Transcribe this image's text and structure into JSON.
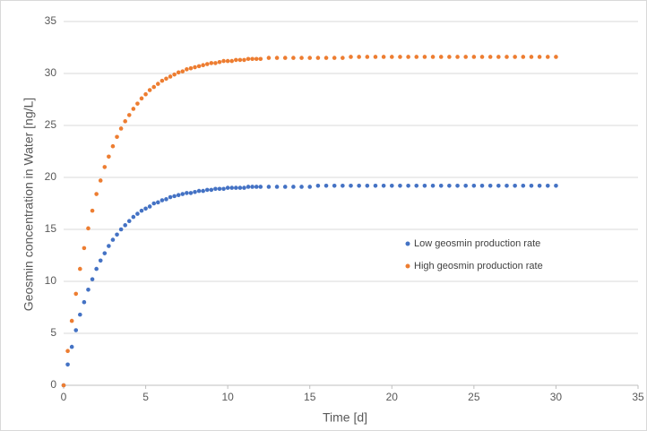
{
  "chart_data": {
    "type": "scatter",
    "x_label": "Time [d]",
    "y_label": "Geosmin concentration in Water [ng/L]",
    "xlim": [
      0,
      35
    ],
    "xticks": [
      0,
      5,
      10,
      15,
      20,
      25,
      30,
      35
    ],
    "ylim": [
      0,
      35
    ],
    "yticks": [
      0,
      5,
      10,
      15,
      20,
      25,
      30,
      35
    ],
    "grid": true,
    "legend_position": "right",
    "x": [
      0,
      0.25,
      0.5,
      0.75,
      1,
      1.25,
      1.5,
      1.75,
      2,
      2.25,
      2.5,
      2.75,
      3,
      3.25,
      3.5,
      3.75,
      4,
      4.25,
      4.5,
      4.75,
      5,
      5.25,
      5.5,
      5.75,
      6,
      6.25,
      6.5,
      6.75,
      7,
      7.25,
      7.5,
      7.75,
      8,
      8.25,
      8.5,
      8.75,
      9,
      9.25,
      9.5,
      9.75,
      10,
      10.25,
      10.5,
      10.75,
      11,
      11.25,
      11.5,
      11.75,
      12,
      12.5,
      13,
      13.5,
      14,
      14.5,
      15,
      15.5,
      16,
      16.5,
      17,
      17.5,
      18,
      18.5,
      19,
      19.5,
      20,
      20.5,
      21,
      21.5,
      22,
      22.5,
      23,
      23.5,
      24,
      24.5,
      25,
      25.5,
      26,
      26.5,
      27,
      27.5,
      28,
      28.5,
      29,
      29.5,
      30
    ],
    "series": [
      {
        "name": "Low geosmin production rate",
        "color": "#4472c4",
        "values": [
          0,
          2.0,
          3.7,
          5.3,
          6.8,
          8.0,
          9.2,
          10.2,
          11.2,
          12.0,
          12.7,
          13.4,
          14.0,
          14.5,
          15.0,
          15.4,
          15.8,
          16.2,
          16.5,
          16.8,
          17.0,
          17.2,
          17.5,
          17.6,
          17.8,
          17.9,
          18.1,
          18.2,
          18.3,
          18.4,
          18.5,
          18.5,
          18.6,
          18.7,
          18.7,
          18.8,
          18.8,
          18.9,
          18.9,
          18.9,
          19.0,
          19.0,
          19.0,
          19.0,
          19.0,
          19.1,
          19.1,
          19.1,
          19.1,
          19.1,
          19.1,
          19.1,
          19.1,
          19.1,
          19.1,
          19.2,
          19.2,
          19.2,
          19.2,
          19.2,
          19.2,
          19.2,
          19.2,
          19.2,
          19.2,
          19.2,
          19.2,
          19.2,
          19.2,
          19.2,
          19.2,
          19.2,
          19.2,
          19.2,
          19.2,
          19.2,
          19.2,
          19.2,
          19.2,
          19.2,
          19.2,
          19.2,
          19.2,
          19.2,
          19.2
        ]
      },
      {
        "name": "High geosmin production rate",
        "color": "#ed7d31",
        "values": [
          0,
          3.3,
          6.2,
          8.8,
          11.2,
          13.2,
          15.1,
          16.8,
          18.4,
          19.7,
          21.0,
          22.0,
          23.0,
          23.9,
          24.7,
          25.4,
          26.0,
          26.6,
          27.1,
          27.6,
          28.0,
          28.4,
          28.7,
          29.0,
          29.3,
          29.5,
          29.7,
          29.9,
          30.1,
          30.2,
          30.4,
          30.5,
          30.6,
          30.7,
          30.8,
          30.9,
          31.0,
          31.0,
          31.1,
          31.2,
          31.2,
          31.2,
          31.3,
          31.3,
          31.3,
          31.4,
          31.4,
          31.4,
          31.4,
          31.5,
          31.5,
          31.5,
          31.5,
          31.5,
          31.5,
          31.5,
          31.5,
          31.5,
          31.5,
          31.6,
          31.6,
          31.6,
          31.6,
          31.6,
          31.6,
          31.6,
          31.6,
          31.6,
          31.6,
          31.6,
          31.6,
          31.6,
          31.6,
          31.6,
          31.6,
          31.6,
          31.6,
          31.6,
          31.6,
          31.6,
          31.6,
          31.6,
          31.6,
          31.6,
          31.6
        ]
      }
    ]
  }
}
